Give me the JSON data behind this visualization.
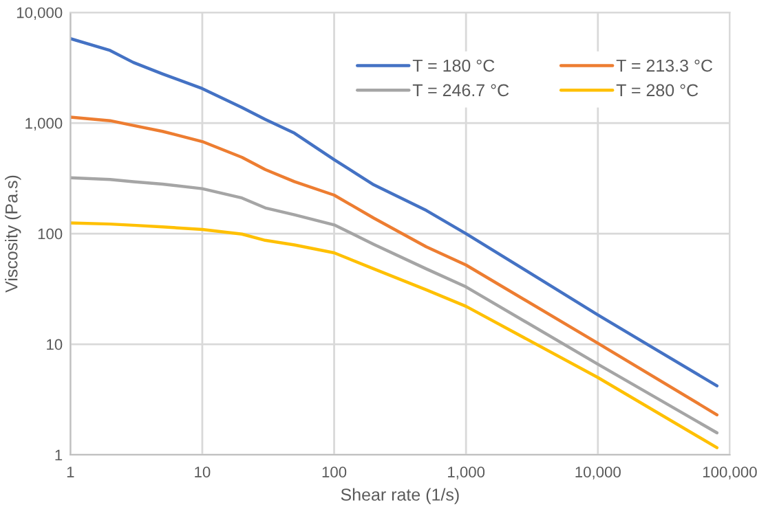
{
  "chart_data": {
    "type": "line",
    "xlabel": "Shear rate (1/s)",
    "ylabel": "Viscosity (Pa.s)",
    "log": "xy",
    "grid": true,
    "legend": "top right",
    "marker": "none",
    "line_style": "solid",
    "xlim": [
      1,
      100000
    ],
    "ylim": [
      1,
      10000
    ],
    "xticks": [
      1,
      10,
      100,
      {
        "value": 1000,
        "label": "1,000"
      },
      {
        "value": 10000,
        "label": "10,000"
      },
      {
        "value": 100000,
        "label": "100,000"
      }
    ],
    "yticks": [
      1,
      10,
      100,
      {
        "value": 1000,
        "label": "1,000"
      },
      {
        "value": 10000,
        "label": "10,000"
      }
    ],
    "x": [
      1,
      2,
      3,
      5,
      10,
      20,
      30,
      50,
      100,
      200,
      500,
      1000,
      10000,
      80000
    ],
    "series": [
      {
        "name": "T = 180 °C",
        "color": "#4472c4",
        "values": [
          5800,
          4530,
          3530,
          2780,
          2050,
          1380,
          1080,
          810,
          466,
          276,
          162,
          100,
          18.4,
          4.2
        ]
      },
      {
        "name": "T = 213.3 °C",
        "color": "#ed7d31",
        "values": [
          1130,
          1050,
          950,
          840,
          680,
          490,
          380,
          295,
          223,
          138,
          76,
          52,
          10.2,
          2.3
        ]
      },
      {
        "name": "T = 246.7 °C",
        "color": "#a5a5a5",
        "values": [
          320,
          309,
          295,
          280,
          255,
          210,
          171,
          148,
          120,
          80,
          48,
          33,
          6.6,
          1.58
        ]
      },
      {
        "name": "T = 280 °C",
        "color": "#ffc000",
        "values": [
          125,
          122,
          119,
          115,
          109,
          99,
          87,
          79,
          67,
          48,
          31,
          22,
          5.0,
          1.16
        ]
      }
    ]
  }
}
